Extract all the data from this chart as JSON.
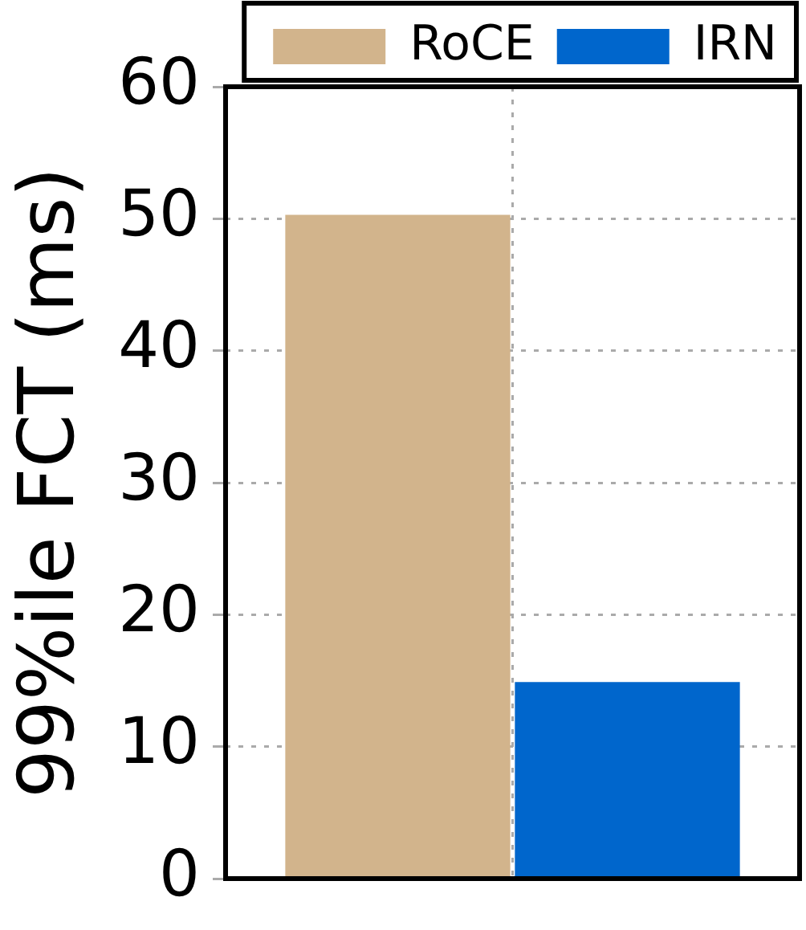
{
  "chart_data": {
    "type": "bar",
    "ylabel": "99%ile FCT (ms)",
    "categories": [
      null
    ],
    "series": [
      {
        "name": "RoCE",
        "color": "#d2b48c",
        "values": [
          50.3
        ]
      },
      {
        "name": "IRN",
        "color": "#0066cc",
        "values": [
          14.9
        ]
      }
    ],
    "ylim": [
      0,
      60
    ],
    "yticks": [
      0,
      10,
      20,
      30,
      40,
      50,
      60
    ],
    "grid": true,
    "legend": "top"
  }
}
